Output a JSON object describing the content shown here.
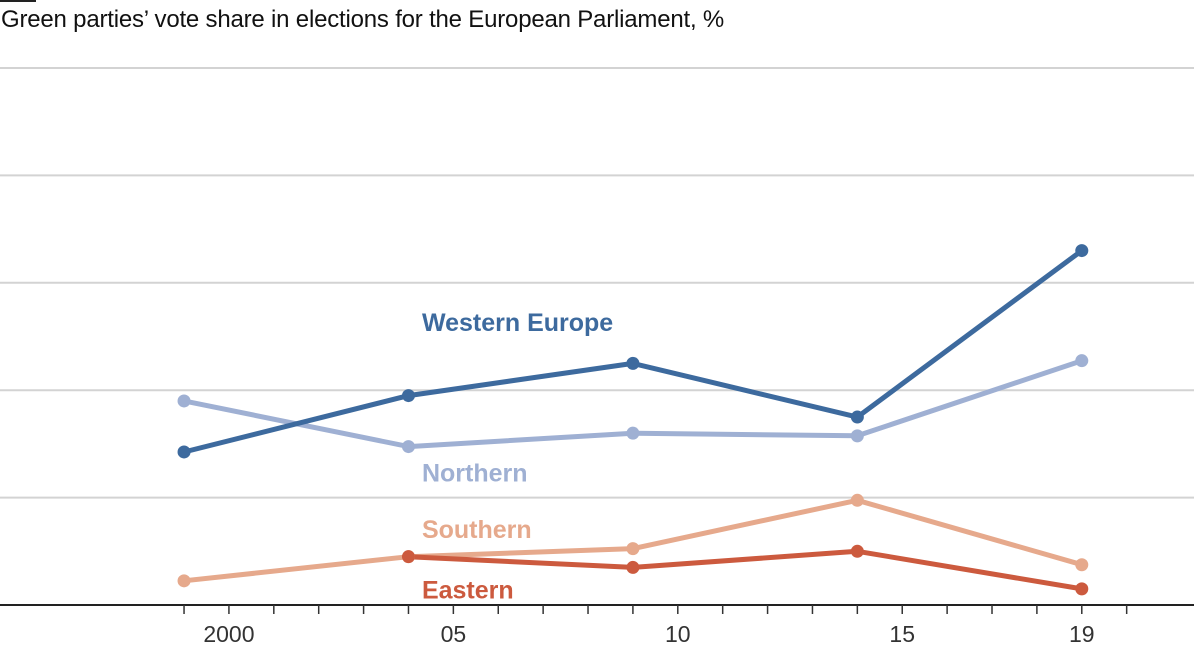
{
  "chart_data": {
    "type": "line",
    "title": "Green parties’ vote share in elections for the European Parliament, %",
    "x": [
      1999,
      2004,
      2009,
      2014,
      2019
    ],
    "xlim": [
      1994.9,
      2021.5
    ],
    "ylim": [
      0,
      20
    ],
    "y_gridlines": [
      0,
      4,
      8,
      12,
      16,
      20
    ],
    "x_major_ticks": [
      2000,
      2005,
      2010,
      2015,
      2019
    ],
    "x_tick_labels": [
      "2000",
      "05",
      "10",
      "15",
      "19"
    ],
    "x_minor_ticks": [
      1999,
      2001,
      2002,
      2003,
      2004,
      2006,
      2007,
      2008,
      2009,
      2011,
      2012,
      2013,
      2014,
      2016,
      2017,
      2018,
      2020
    ],
    "y_tick_labels_shown": false,
    "grid": true,
    "legend": "inline labels",
    "series": [
      {
        "name": "Western Europe",
        "color": "#3d6a9e",
        "values": [
          5.7,
          7.8,
          9.0,
          7.0,
          13.2
        ]
      },
      {
        "name": "Northern",
        "color": "#9fb0d3",
        "values": [
          7.6,
          5.9,
          6.4,
          6.3,
          9.1
        ]
      },
      {
        "name": "Southern",
        "color": "#e6a98c",
        "values": [
          0.9,
          1.8,
          2.1,
          3.9,
          1.5
        ]
      },
      {
        "name": "Eastern",
        "color": "#cc5a3e",
        "values": [
          null,
          1.8,
          1.4,
          2.0,
          0.6
        ]
      }
    ]
  }
}
